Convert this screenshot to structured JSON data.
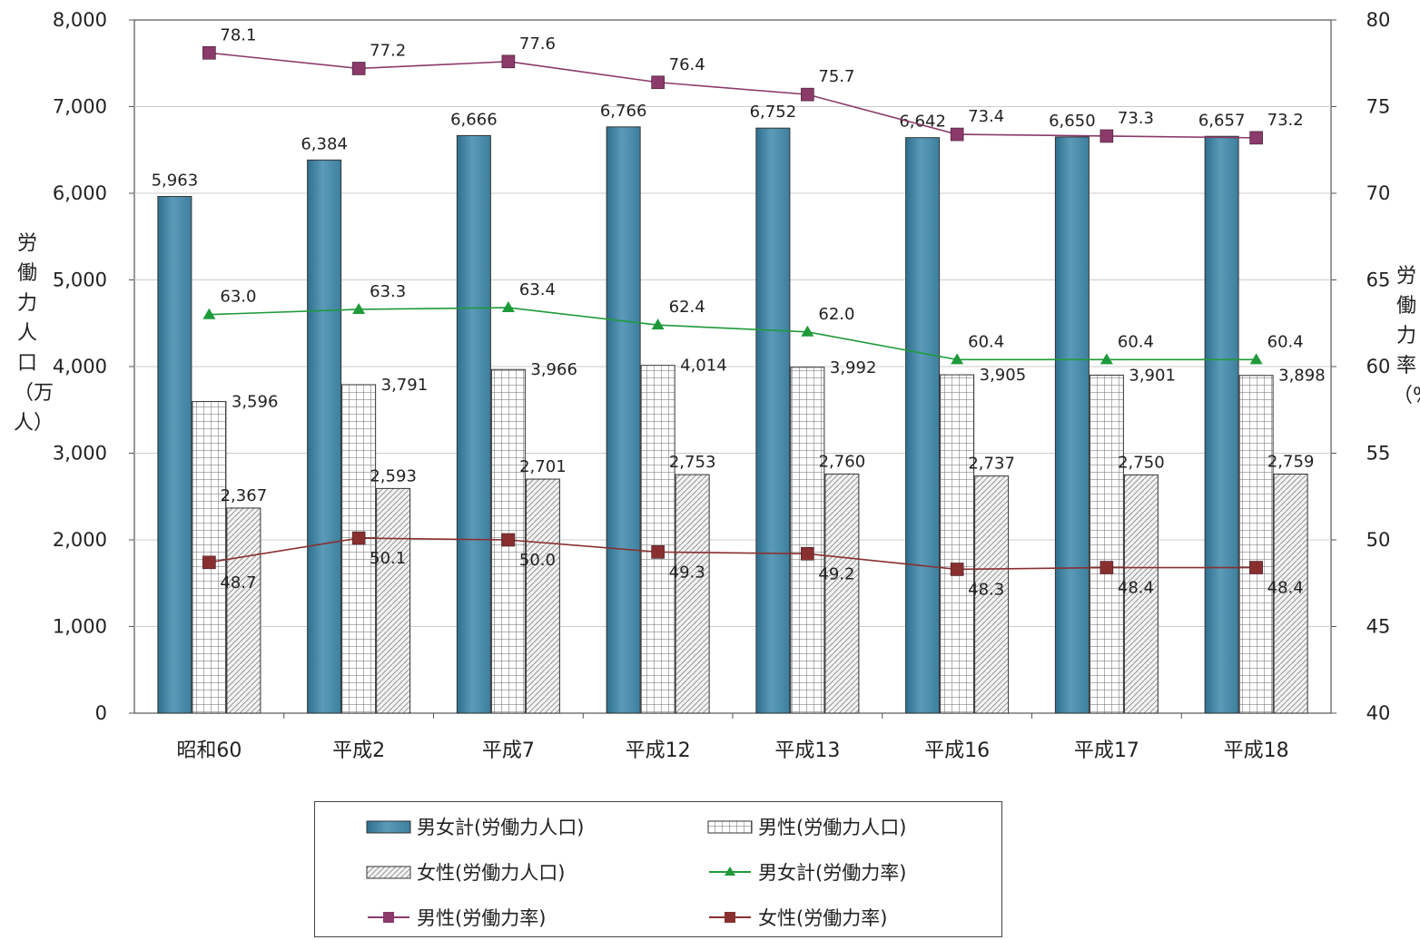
{
  "axis_titles": {
    "left": "労働力人口（万人）",
    "right": "労働力率（%）"
  },
  "legend": [
    {
      "label": "男女計(労働力人口)",
      "kind": "bar-total"
    },
    {
      "label": "男性(労働力人口)",
      "kind": "bar-male"
    },
    {
      "label": "女性(労働力人口)",
      "kind": "bar-female"
    },
    {
      "label": "男女計(労働力率)",
      "kind": "line-total"
    },
    {
      "label": "男性(労働力率)",
      "kind": "line-male"
    },
    {
      "label": "女性(労働力率)",
      "kind": "line-female"
    }
  ],
  "colors": {
    "bar_total": "#5b9bb8",
    "bar_total_dark": "#2e6f8e",
    "line_total": "#1f9a3a",
    "line_male": "#8b3a6a",
    "line_female": "#8a2f2f",
    "grid": "#cccccc"
  },
  "chart_data": {
    "type": "bar",
    "categories": [
      "昭和60",
      "平成2",
      "平成7",
      "平成12",
      "平成13",
      "平成16",
      "平成17",
      "平成18"
    ],
    "y_left": {
      "min": 0,
      "max": 8000,
      "ticks": [
        "0",
        "1,000",
        "2,000",
        "3,000",
        "4,000",
        "5,000",
        "6,000",
        "7,000",
        "8,000"
      ]
    },
    "y_right": {
      "min": 40,
      "max": 80,
      "ticks": [
        "40",
        "45",
        "50",
        "55",
        "60",
        "65",
        "70",
        "75",
        "80"
      ]
    },
    "grid": "horizontal",
    "legend_position": "bottom",
    "bars": [
      {
        "name": "男女計(労働力人口)",
        "values": [
          5963,
          6384,
          6666,
          6766,
          6752,
          6642,
          6650,
          6657
        ],
        "labels": [
          "5,963",
          "6,384",
          "6,666",
          "6,766",
          "6,752",
          "6,642",
          "6,650",
          "6,657"
        ]
      },
      {
        "name": "男性(労働力人口)",
        "values": [
          3596,
          3791,
          3966,
          4014,
          3992,
          3905,
          3901,
          3898
        ],
        "labels": [
          "3,596",
          "3,791",
          "3,966",
          "4,014",
          "3,992",
          "3,905",
          "3,901",
          "3,898"
        ]
      },
      {
        "name": "女性(労働力人口)",
        "values": [
          2367,
          2593,
          2701,
          2753,
          2760,
          2737,
          2750,
          2759
        ],
        "labels": [
          "2,367",
          "2,593",
          "2,701",
          "2,753",
          "2,760",
          "2,737",
          "2,750",
          "2,759"
        ]
      }
    ],
    "lines": [
      {
        "name": "男女計(労働力率)",
        "values": [
          63.0,
          63.3,
          63.4,
          62.4,
          62.0,
          60.4,
          60.4,
          60.4
        ],
        "labels": [
          "63.0",
          "63.3",
          "63.4",
          "62.4",
          "62.0",
          "60.4",
          "60.4",
          "60.4"
        ]
      },
      {
        "name": "男性(労働力率)",
        "values": [
          78.1,
          77.2,
          77.6,
          76.4,
          75.7,
          73.4,
          73.3,
          73.2
        ],
        "labels": [
          "78.1",
          "77.2",
          "77.6",
          "76.4",
          "75.7",
          "73.4",
          "73.3",
          "73.2"
        ]
      },
      {
        "name": "女性(労働力率)",
        "values": [
          48.7,
          50.1,
          50.0,
          49.3,
          49.2,
          48.3,
          48.4,
          48.4
        ],
        "labels": [
          "48.7",
          "50.1",
          "50.0",
          "49.3",
          "49.2",
          "48.3",
          "48.4",
          "48.4"
        ]
      }
    ]
  }
}
